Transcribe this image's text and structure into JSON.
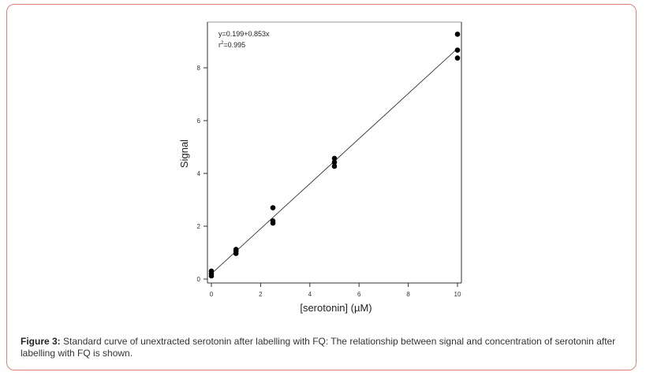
{
  "figure": {
    "caption_label": "Figure 3:",
    "caption_text": " Standard curve of unextracted serotonin after labelling with FQ: The relationship between signal and concentration of serotonin after labelling with FQ is shown."
  },
  "chart_data": {
    "type": "scatter",
    "title": "",
    "xlabel": "[serotonin] (µM)",
    "ylabel": "Signal",
    "xlim": [
      0,
      10
    ],
    "ylim": [
      0,
      9.3
    ],
    "x_ticks": [
      "0",
      "2",
      "4",
      "6",
      "8",
      "10"
    ],
    "y_ticks": [
      "0",
      "2",
      "4",
      "6",
      "8"
    ],
    "grid": false,
    "legend": null,
    "annotation": {
      "equation": "y=0.199+0.853x",
      "r2_label": "r",
      "r2_sup": "2",
      "r2_value": "=0.995"
    },
    "fit_line": {
      "intercept": 0.199,
      "slope": 0.853,
      "x_range": [
        0,
        10
      ]
    },
    "series": [
      {
        "name": "Signal",
        "points": [
          {
            "x": 0,
            "y": 0.12
          },
          {
            "x": 0,
            "y": 0.2
          },
          {
            "x": 0,
            "y": 0.3
          },
          {
            "x": 1,
            "y": 0.97
          },
          {
            "x": 1,
            "y": 1.05
          },
          {
            "x": 1,
            "y": 1.12
          },
          {
            "x": 2.5,
            "y": 2.12
          },
          {
            "x": 2.5,
            "y": 2.2
          },
          {
            "x": 2.5,
            "y": 2.7
          },
          {
            "x": 5,
            "y": 4.27
          },
          {
            "x": 5,
            "y": 4.42
          },
          {
            "x": 5,
            "y": 4.57
          },
          {
            "x": 10,
            "y": 8.37
          },
          {
            "x": 10,
            "y": 8.67
          },
          {
            "x": 10,
            "y": 9.27
          }
        ]
      }
    ]
  }
}
